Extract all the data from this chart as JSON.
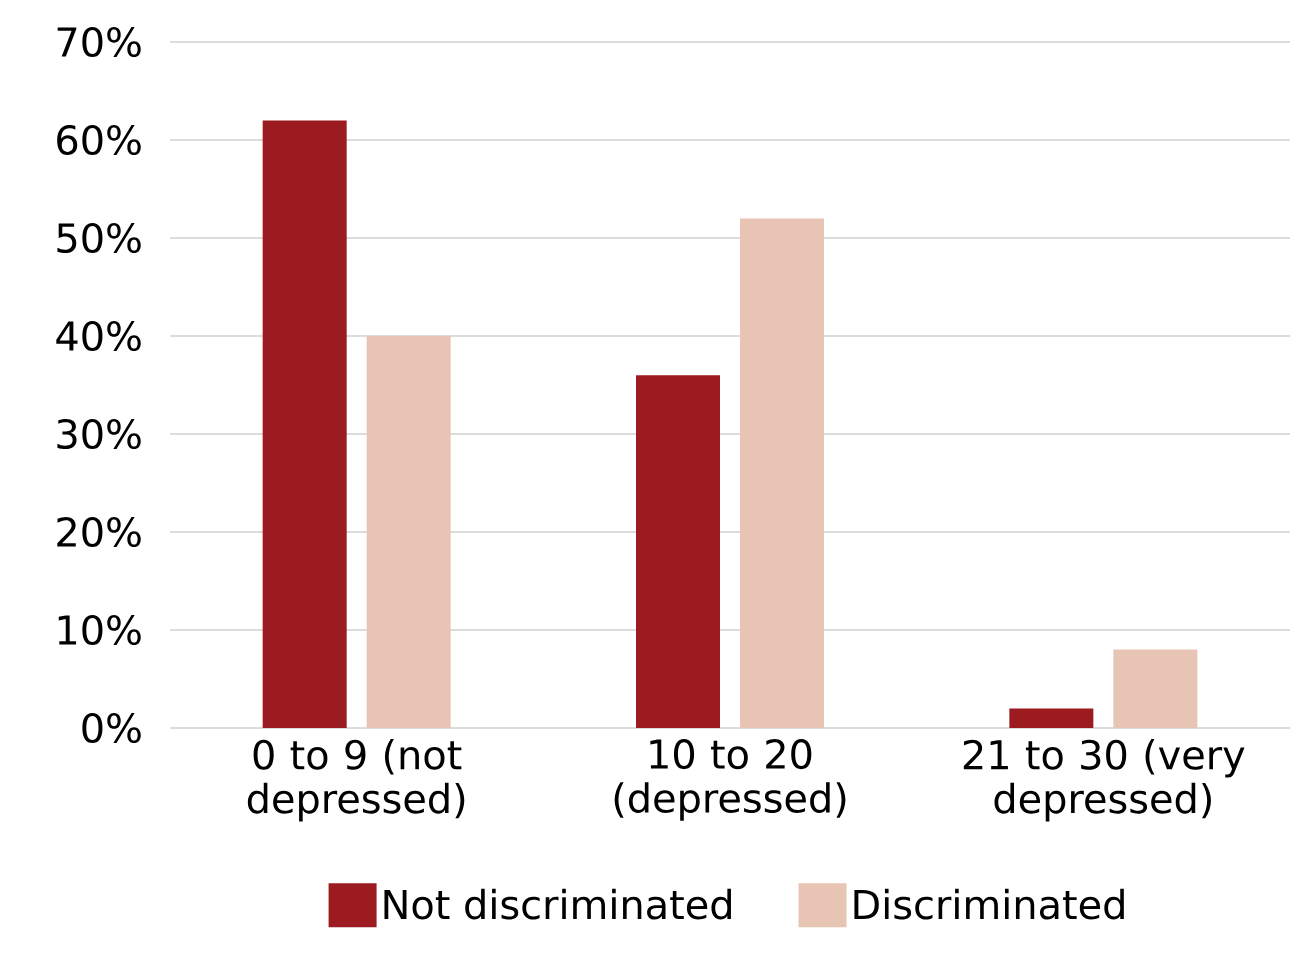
{
  "chart_data": {
    "type": "bar",
    "categories": [
      "0 to 9 (not depressed)",
      "10 to 20 (depressed)",
      "21 to 30 (very depressed)"
    ],
    "series": [
      {
        "name": "Not discriminated",
        "color": "#9b1b20",
        "values": [
          62,
          36,
          2
        ]
      },
      {
        "name": "Discriminated",
        "color": "#e8c4b5",
        "values": [
          40,
          52,
          8
        ]
      }
    ],
    "ylim": [
      0,
      70
    ],
    "yticks": [
      {
        "value": 0,
        "label": "0%"
      },
      {
        "value": 10,
        "label": "10%"
      },
      {
        "value": 20,
        "label": "20%"
      },
      {
        "value": 30,
        "label": "30%"
      },
      {
        "value": 40,
        "label": "40%"
      },
      {
        "value": 50,
        "label": "50%"
      },
      {
        "value": 60,
        "label": "60%"
      },
      {
        "value": 70,
        "label": "70%"
      }
    ],
    "grid": "y",
    "legend": "bottom"
  }
}
